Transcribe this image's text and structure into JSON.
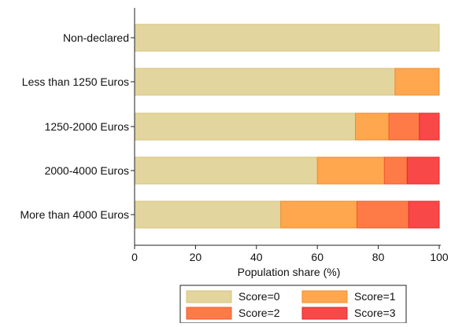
{
  "chart_data": {
    "type": "bar",
    "orientation": "horizontal",
    "stacked": true,
    "title": "",
    "xlabel": "Population share (%)",
    "ylabel": "",
    "xlim": [
      0,
      100
    ],
    "x_ticks": [
      "0",
      "20",
      "40",
      "60",
      "80",
      "100"
    ],
    "grid": false,
    "legend_position": "bottom",
    "categories": [
      "Non-declared",
      "Less than 1250 Euros",
      "1250-2000 Euros",
      "2000-4000 Euros",
      "More than 4000 Euros"
    ],
    "series": [
      {
        "name": "Score=0",
        "color": "#e3d59e",
        "edge": "#d4c37a",
        "values": [
          100,
          85.5,
          72.5,
          60,
          48
        ]
      },
      {
        "name": "Score=1",
        "color": "#ffa74f",
        "edge": "#f08b2c",
        "values": [
          0,
          14.5,
          11,
          22,
          25
        ]
      },
      {
        "name": "Score=2",
        "color": "#fe7b48",
        "edge": "#ee5a2a",
        "values": [
          0,
          0,
          10,
          7.5,
          17
        ]
      },
      {
        "name": "Score=3",
        "color": "#f94848",
        "edge": "#e52828",
        "values": [
          0,
          0,
          6.5,
          10.5,
          10
        ]
      }
    ]
  }
}
